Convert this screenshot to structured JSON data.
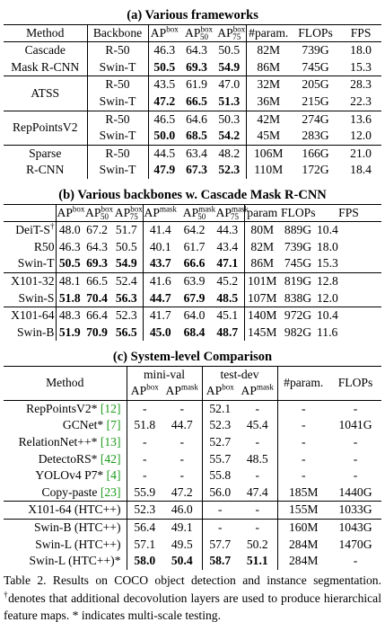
{
  "section_a": {
    "title": "(a) Various frameworks",
    "headers": {
      "method": "Method",
      "backbone": "Backbone",
      "ap": "AP",
      "ap50": "AP",
      "ap75": "AP",
      "box": "box",
      "n50": "50",
      "n75": "75",
      "param": "#param.",
      "flops": "FLOPs",
      "fps": "FPS"
    },
    "rows": [
      {
        "method": "Cascade",
        "backbone": "R-50",
        "ap": "46.3",
        "ap50": "64.3",
        "ap75": "50.5",
        "param": "82M",
        "flops": "739G",
        "fps": "18.0"
      },
      {
        "method": "Mask R-CNN",
        "backbone": "Swin-T",
        "ap": "50.5",
        "ap50": "69.3",
        "ap75": "54.9",
        "param": "86M",
        "flops": "745G",
        "fps": "15.3"
      },
      {
        "method": "ATSS",
        "backbone": "R-50",
        "ap": "43.5",
        "ap50": "61.9",
        "ap75": "47.0",
        "param": "32M",
        "flops": "205G",
        "fps": "28.3"
      },
      {
        "method": "",
        "backbone": "Swin-T",
        "ap": "47.2",
        "ap50": "66.5",
        "ap75": "51.3",
        "param": "36M",
        "flops": "215G",
        "fps": "22.3"
      },
      {
        "method": "RepPointsV2",
        "backbone": "R-50",
        "ap": "46.5",
        "ap50": "64.6",
        "ap75": "50.3",
        "param": "42M",
        "flops": "274G",
        "fps": "13.6"
      },
      {
        "method": "",
        "backbone": "Swin-T",
        "ap": "50.0",
        "ap50": "68.5",
        "ap75": "54.2",
        "param": "45M",
        "flops": "283G",
        "fps": "12.0"
      },
      {
        "method": "Sparse",
        "backbone": "R-50",
        "ap": "44.5",
        "ap50": "63.4",
        "ap75": "48.2",
        "param": "106M",
        "flops": "166G",
        "fps": "21.0"
      },
      {
        "method": "R-CNN",
        "backbone": "Swin-T",
        "ap": "47.9",
        "ap50": "67.3",
        "ap75": "52.3",
        "param": "110M",
        "flops": "172G",
        "fps": "18.4"
      }
    ]
  },
  "section_b": {
    "title": "(b) Various backbones w. Cascade Mask R-CNN",
    "headers": {
      "ap": "AP",
      "box": "box",
      "mask": "mask",
      "n50": "50",
      "n75": "75",
      "param": "param",
      "flops": "FLOPs",
      "fps": "FPS"
    },
    "rows": [
      {
        "method": "DeiT-S",
        "dagger": "†",
        "v": [
          "48.0",
          "67.2",
          "51.7",
          "41.4",
          "64.2",
          "44.3",
          "80M",
          "889G",
          "10.4"
        ]
      },
      {
        "method": "R50",
        "dagger": "",
        "v": [
          "46.3",
          "64.3",
          "50.5",
          "40.1",
          "61.7",
          "43.4",
          "82M",
          "739G",
          "18.0"
        ]
      },
      {
        "method": "Swin-T",
        "dagger": "",
        "v": [
          "50.5",
          "69.3",
          "54.9",
          "43.7",
          "66.6",
          "47.1",
          "86M",
          "745G",
          "15.3"
        ]
      },
      {
        "method": "X101-32",
        "dagger": "",
        "v": [
          "48.1",
          "66.5",
          "52.4",
          "41.6",
          "63.9",
          "45.2",
          "101M",
          "819G",
          "12.8"
        ]
      },
      {
        "method": "Swin-S",
        "dagger": "",
        "v": [
          "51.8",
          "70.4",
          "56.3",
          "44.7",
          "67.9",
          "48.5",
          "107M",
          "838G",
          "12.0"
        ]
      },
      {
        "method": "X101-64",
        "dagger": "",
        "v": [
          "48.3",
          "66.4",
          "52.3",
          "41.7",
          "64.0",
          "45.1",
          "140M",
          "972G",
          "10.4"
        ]
      },
      {
        "method": "Swin-B",
        "dagger": "",
        "v": [
          "51.9",
          "70.9",
          "56.5",
          "45.0",
          "68.4",
          "48.7",
          "145M",
          "982G",
          "11.6"
        ]
      }
    ]
  },
  "section_c": {
    "title": "(c) System-level Comparison",
    "headers": {
      "method": "Method",
      "minival": "mini-val",
      "testdev": "test-dev",
      "ap": "AP",
      "box": "box",
      "mask": "mask",
      "param": "#param.",
      "flops": "FLOPs"
    },
    "rows": [
      {
        "method": "RepPointsV2*",
        "cite": "[12]",
        "v": [
          "-",
          "-",
          "52.1",
          "-",
          "-",
          "-"
        ]
      },
      {
        "method": "GCNet*",
        "cite": "[7]",
        "v": [
          "51.8",
          "44.7",
          "52.3",
          "45.4",
          "-",
          "1041G"
        ]
      },
      {
        "method": "RelationNet++*",
        "cite": "[13]",
        "v": [
          "-",
          "-",
          "52.7",
          "-",
          "-",
          "-"
        ]
      },
      {
        "method": "DetectoRS*",
        "cite": "[42]",
        "v": [
          "-",
          "-",
          "55.7",
          "48.5",
          "-",
          "-"
        ]
      },
      {
        "method": "YOLOv4 P7*",
        "cite": "[4]",
        "v": [
          "-",
          "-",
          "55.8",
          "-",
          "-",
          "-"
        ]
      },
      {
        "method": "Copy-paste",
        "cite": "[23]",
        "v": [
          "55.9",
          "47.2",
          "56.0",
          "47.4",
          "185M",
          "1440G"
        ]
      },
      {
        "method": "X101-64 (HTC++)",
        "cite": "",
        "v": [
          "52.3",
          "46.0",
          "-",
          "-",
          "155M",
          "1033G"
        ]
      },
      {
        "method": "Swin-B (HTC++)",
        "cite": "",
        "v": [
          "56.4",
          "49.1",
          "-",
          "-",
          "160M",
          "1043G"
        ]
      },
      {
        "method": "Swin-L (HTC++)",
        "cite": "",
        "v": [
          "57.1",
          "49.5",
          "57.7",
          "50.2",
          "284M",
          "1470G"
        ]
      },
      {
        "method": "Swin-L (HTC++)*",
        "cite": "",
        "v": [
          "58.0",
          "50.4",
          "58.7",
          "51.1",
          "284M",
          "-"
        ]
      }
    ]
  },
  "caption": {
    "part1": "Table 2. Results on COCO object detection and instance segmentation. ",
    "dagger": "†",
    "part2": "denotes that additional decovolution layers are used to produce hierarchical feature maps. * indicates multi-scale testing."
  }
}
